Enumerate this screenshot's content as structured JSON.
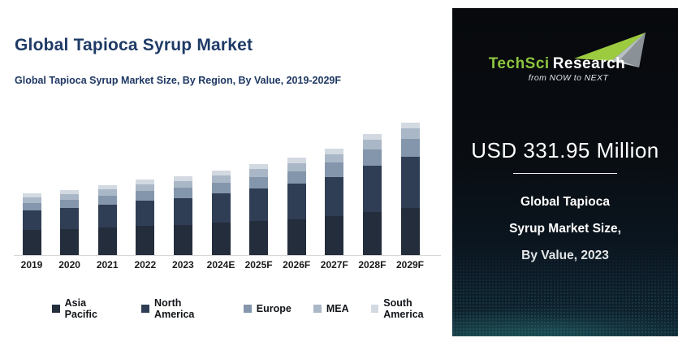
{
  "left_panel": {
    "title": "Global Tapioca Syrup Market",
    "subtitle": "Global Tapioca Syrup Market Size, By Region, By Value, 2019-2029F"
  },
  "chart_data": {
    "type": "bar",
    "stacked": true,
    "value_unit": "USD Million",
    "values_estimated": true,
    "categories": [
      "2019",
      "2020",
      "2021",
      "2022",
      "2023",
      "2024E",
      "2025F",
      "2026F",
      "2027F",
      "2028F",
      "2029F"
    ],
    "series": [
      {
        "name": "Asia Pacific",
        "color": "#242d3c",
        "values": [
          105,
          109,
          116,
          123,
          127,
          135,
          143,
          151,
          163,
          182,
          197
        ]
      },
      {
        "name": "North America",
        "color": "#2f3e54",
        "values": [
          82,
          88,
          97,
          107,
          113,
          124,
          136,
          148,
          166,
          193,
          215
        ]
      },
      {
        "name": "Europe",
        "color": "#8496ab",
        "values": [
          32,
          34,
          37,
          40,
          42,
          46,
          50,
          54,
          60,
          69,
          76
        ]
      },
      {
        "name": "MEA",
        "color": "#aab7c7",
        "values": [
          24,
          25,
          26,
          28,
          29,
          30,
          32,
          34,
          36,
          40,
          43
        ]
      },
      {
        "name": "South America",
        "color": "#d2d9e1",
        "values": [
          18,
          18,
          19,
          20,
          20.95,
          21,
          22,
          22,
          23,
          24,
          24
        ]
      }
    ],
    "totals": [
      261,
      274,
      295,
      318,
      331.95,
      356,
      383,
      409,
      448,
      508,
      555
    ],
    "ylim": [
      0,
      580
    ],
    "gridlines": false,
    "y_axis_visible": false,
    "legend_position": "bottom"
  },
  "right_panel": {
    "logo": {
      "brand_green": "TechSci",
      "brand_white": "Research",
      "tagline": "from NOW to NEXT",
      "accent_green": "#8dc63f"
    },
    "headline": "USD 331.95 Million",
    "caption_lines": [
      "Global Tapioca",
      "Syrup Market Size,",
      "By Value, 2023"
    ]
  },
  "colors": {
    "title_navy": "#1e3a66",
    "axis_gray": "#d6d6d6",
    "panel_dark": "#090d12",
    "wave_teal": "#3aa79e"
  }
}
